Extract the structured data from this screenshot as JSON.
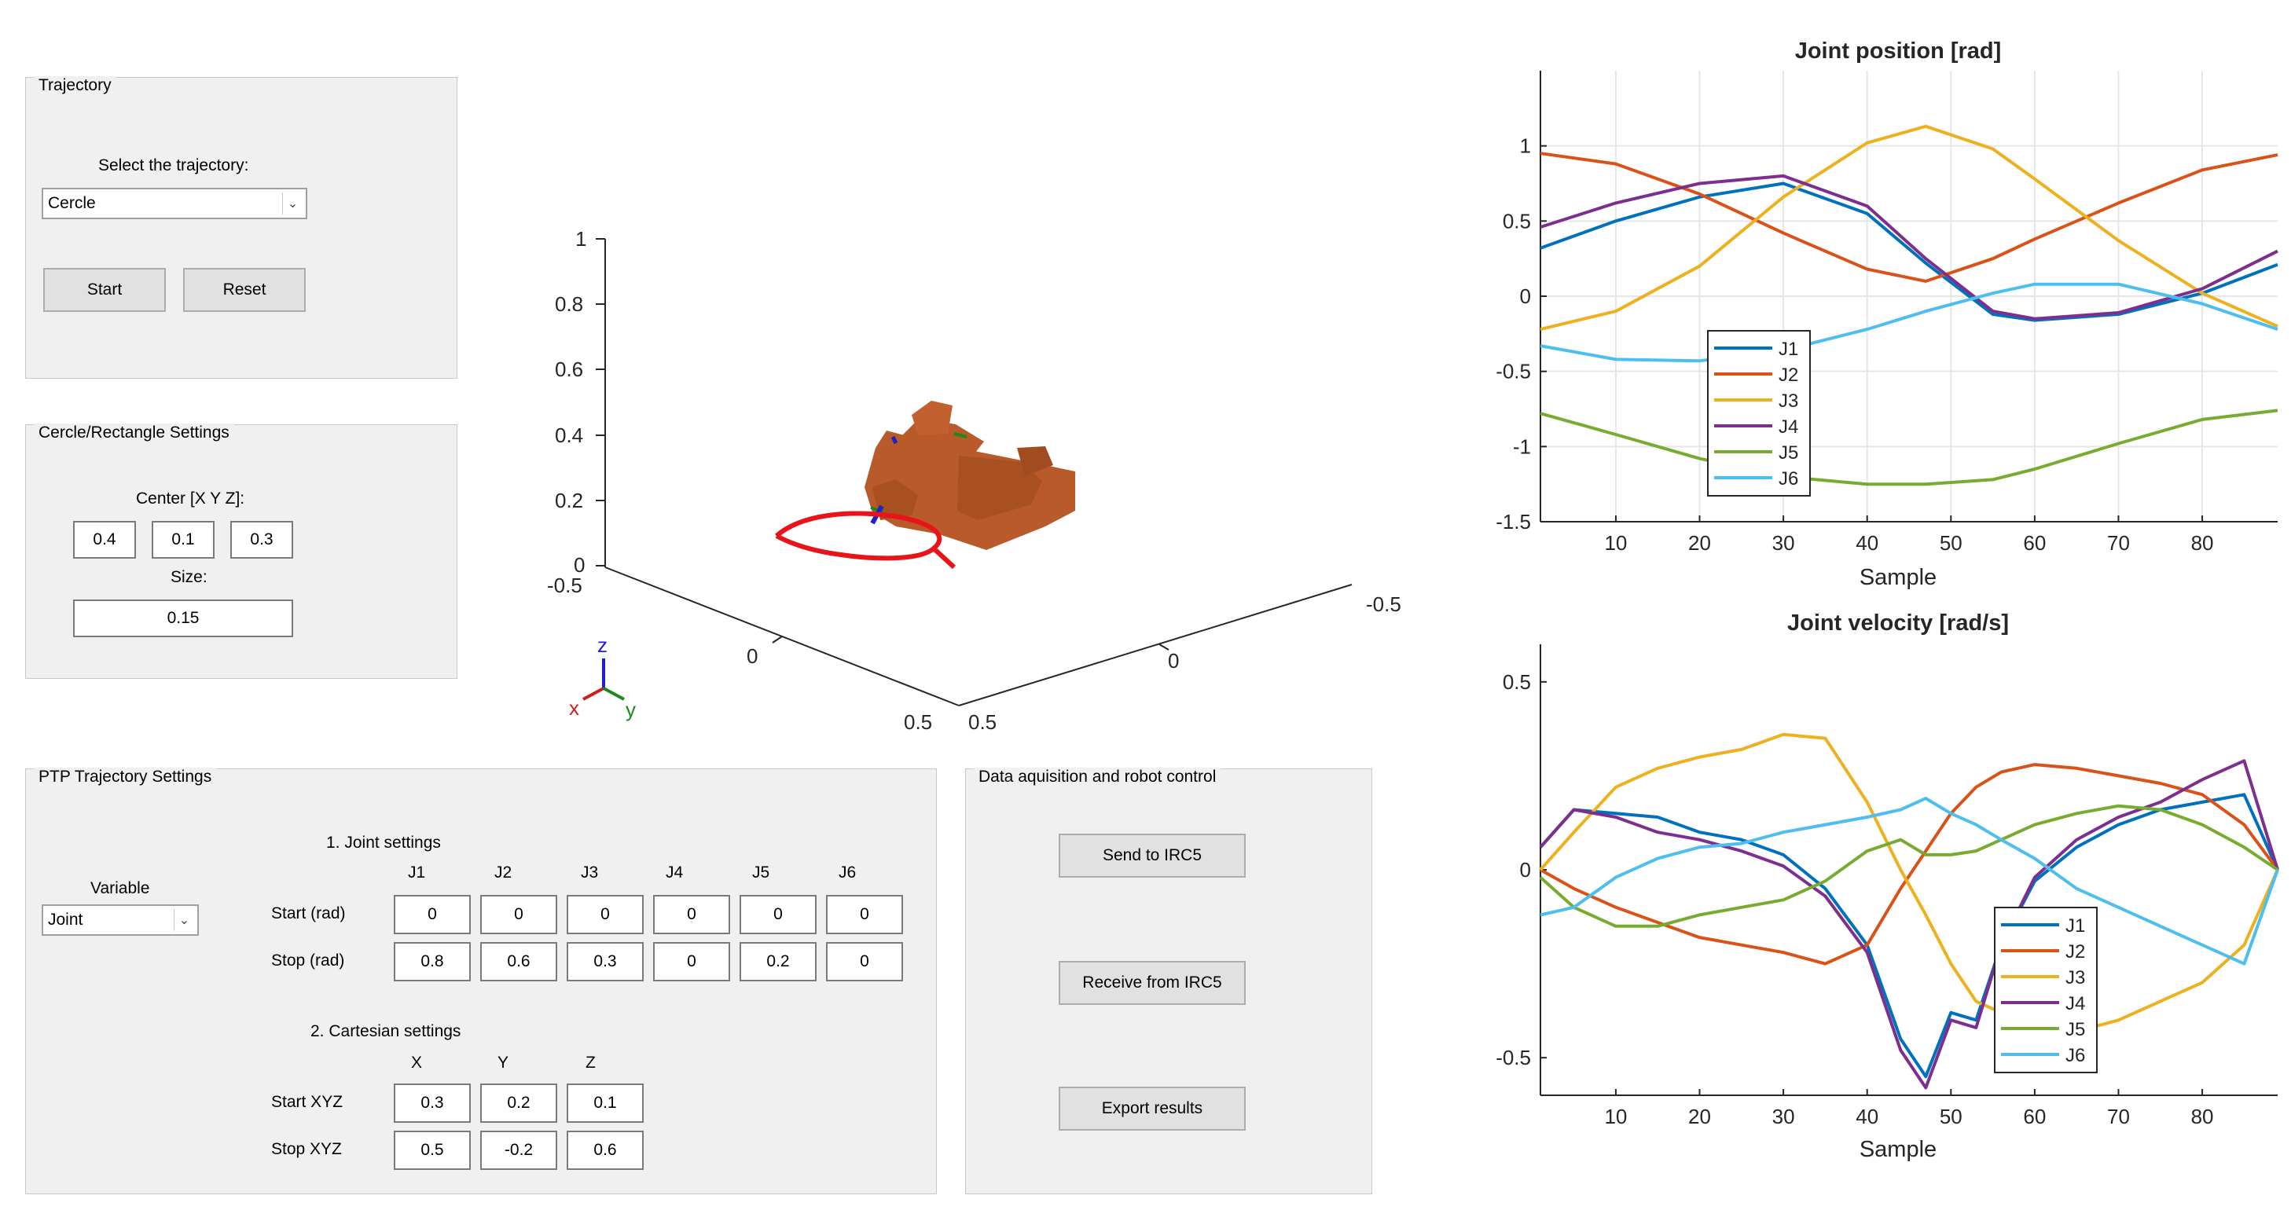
{
  "trajectory_panel": {
    "title": "Trajectory",
    "select_label": "Select the trajectory:",
    "selected": "Cercle",
    "start_label": "Start",
    "reset_label": "Reset"
  },
  "cercle_panel": {
    "title": "Cercle/Rectangle Settings",
    "center_label": "Center [X Y Z]:",
    "center_x": "0.4",
    "center_y": "0.1",
    "center_z": "0.3",
    "size_label": "Size:",
    "size_value": "0.15"
  },
  "ptp_panel": {
    "title": "PTP Trajectory Settings",
    "variable_label": "Variable",
    "variable_value": "Joint",
    "joint_heading": "1. Joint settings",
    "joint_cols": [
      "J1",
      "J2",
      "J3",
      "J4",
      "J5",
      "J6"
    ],
    "start_rad_label": "Start (rad)",
    "stop_rad_label": "Stop (rad)",
    "start_rad": [
      "0",
      "0",
      "0",
      "0",
      "0",
      "0"
    ],
    "stop_rad": [
      "0.8",
      "0.6",
      "0.3",
      "0",
      "0.2",
      "0"
    ],
    "cart_heading": "2. Cartesian settings",
    "cart_cols": [
      "X",
      "Y",
      "Z"
    ],
    "start_xyz_label": "Start XYZ",
    "stop_xyz_label": "Stop XYZ",
    "start_xyz": [
      "0.3",
      "0.2",
      "0.1"
    ],
    "stop_xyz": [
      "0.5",
      "-0.2",
      "0.6"
    ]
  },
  "control_panel": {
    "title": "Data aquisition and robot control",
    "send_label": "Send to IRC5",
    "receive_label": "Receive from IRC5",
    "export_label": "Export results"
  },
  "view3d": {
    "z_ticks": [
      "1",
      "0.8",
      "0.6",
      "0.4",
      "0.2",
      "0"
    ],
    "x_ticks": [
      "-0.5",
      "0",
      "0.5"
    ],
    "y_ticks": [
      "0.5",
      "0",
      "-0.5"
    ],
    "triad": {
      "x": "x",
      "y": "y",
      "z": "z"
    },
    "colors": {
      "robot": "#b85a2a",
      "path": "#e8141a"
    }
  },
  "chart_data": [
    {
      "type": "line",
      "title": "Joint position [rad]",
      "xlabel": "Sample",
      "ylabel": "",
      "xlim": [
        1,
        89
      ],
      "ylim": [
        -1.5,
        1.5
      ],
      "xticks": [
        10,
        20,
        30,
        40,
        50,
        60,
        70,
        80
      ],
      "yticks": [
        "1",
        "0.5",
        "0",
        "-0.5",
        "-1",
        "-1.5"
      ],
      "yticks_values": [
        1,
        0.5,
        0,
        -0.5,
        -1,
        -1.5
      ],
      "grid": true,
      "legend": "lower-left",
      "x": [
        1,
        10,
        20,
        30,
        40,
        47,
        55,
        60,
        70,
        80,
        89
      ],
      "series": [
        {
          "name": "J1",
          "color": "#0072bd",
          "values": [
            0.32,
            0.5,
            0.66,
            0.75,
            0.55,
            0.22,
            -0.12,
            -0.16,
            -0.12,
            0.02,
            0.21
          ]
        },
        {
          "name": "J2",
          "color": "#d95319",
          "values": [
            0.95,
            0.88,
            0.68,
            0.42,
            0.18,
            0.1,
            0.25,
            0.38,
            0.62,
            0.84,
            0.94
          ]
        },
        {
          "name": "J3",
          "color": "#edb120",
          "values": [
            -0.22,
            -0.1,
            0.2,
            0.66,
            1.02,
            1.13,
            0.98,
            0.78,
            0.37,
            0.02,
            -0.2
          ]
        },
        {
          "name": "J4",
          "color": "#7e2f8e",
          "values": [
            0.46,
            0.62,
            0.75,
            0.8,
            0.6,
            0.25,
            -0.1,
            -0.15,
            -0.11,
            0.05,
            0.3
          ]
        },
        {
          "name": "J5",
          "color": "#77ac30",
          "values": [
            -0.78,
            -0.92,
            -1.08,
            -1.2,
            -1.25,
            -1.25,
            -1.22,
            -1.15,
            -0.98,
            -0.82,
            -0.76
          ]
        },
        {
          "name": "J6",
          "color": "#4dbeee",
          "values": [
            -0.33,
            -0.42,
            -0.43,
            -0.36,
            -0.22,
            -0.1,
            0.02,
            0.08,
            0.08,
            -0.05,
            -0.22
          ]
        }
      ]
    },
    {
      "type": "line",
      "title": "Joint velocity [rad/s]",
      "xlabel": "Sample",
      "ylabel": "",
      "xlim": [
        1,
        89
      ],
      "ylim": [
        -0.6,
        0.6
      ],
      "xticks": [
        10,
        20,
        30,
        40,
        50,
        60,
        70,
        80
      ],
      "yticks": [
        "0.5",
        "0",
        "-0.5"
      ],
      "yticks_values": [
        0.5,
        0,
        -0.5
      ],
      "grid": false,
      "legend": "lower-right",
      "x": [
        1,
        5,
        10,
        15,
        20,
        25,
        30,
        35,
        40,
        44,
        47,
        50,
        53,
        56,
        60,
        65,
        70,
        75,
        80,
        85,
        89
      ],
      "series": [
        {
          "name": "J1",
          "color": "#0072bd",
          "values": [
            0.06,
            0.16,
            0.15,
            0.14,
            0.1,
            0.08,
            0.04,
            -0.05,
            -0.2,
            -0.45,
            -0.55,
            -0.38,
            -0.4,
            -0.2,
            -0.03,
            0.06,
            0.12,
            0.16,
            0.18,
            0.2,
            0.0
          ]
        },
        {
          "name": "J2",
          "color": "#d95319",
          "values": [
            0.0,
            -0.05,
            -0.1,
            -0.14,
            -0.18,
            -0.2,
            -0.22,
            -0.25,
            -0.2,
            -0.05,
            0.05,
            0.15,
            0.22,
            0.26,
            0.28,
            0.27,
            0.25,
            0.23,
            0.2,
            0.12,
            0.0
          ]
        },
        {
          "name": "J3",
          "color": "#edb120",
          "values": [
            0.0,
            0.1,
            0.22,
            0.27,
            0.3,
            0.32,
            0.36,
            0.35,
            0.18,
            0.0,
            -0.12,
            -0.25,
            -0.35,
            -0.38,
            -0.42,
            -0.43,
            -0.4,
            -0.35,
            -0.3,
            -0.2,
            0.0
          ]
        },
        {
          "name": "J4",
          "color": "#7e2f8e",
          "values": [
            0.06,
            0.16,
            0.14,
            0.1,
            0.08,
            0.05,
            0.01,
            -0.07,
            -0.22,
            -0.48,
            -0.58,
            -0.4,
            -0.42,
            -0.2,
            -0.02,
            0.08,
            0.14,
            0.18,
            0.24,
            0.29,
            0.0
          ]
        },
        {
          "name": "J5",
          "color": "#77ac30",
          "values": [
            -0.02,
            -0.1,
            -0.15,
            -0.15,
            -0.12,
            -0.1,
            -0.08,
            -0.03,
            0.05,
            0.08,
            0.04,
            0.04,
            0.05,
            0.08,
            0.12,
            0.15,
            0.17,
            0.16,
            0.12,
            0.06,
            0.0
          ]
        },
        {
          "name": "J6",
          "color": "#4dbeee",
          "values": [
            -0.12,
            -0.1,
            -0.02,
            0.03,
            0.06,
            0.07,
            0.1,
            0.12,
            0.14,
            0.16,
            0.19,
            0.15,
            0.12,
            0.08,
            0.03,
            -0.05,
            -0.1,
            -0.15,
            -0.2,
            -0.25,
            0.0
          ]
        }
      ]
    }
  ]
}
